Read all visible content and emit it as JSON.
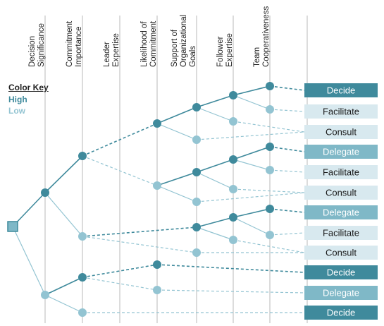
{
  "headers": [
    "Decision\nSignificance",
    "Commitment\nImportance",
    "Leader\nExpertise",
    "Likelihood of\nCommitment",
    "Support of\nOrganizational\nGoals",
    "Follower\nExpertise",
    "Team\nCooperativeness"
  ],
  "color_key": {
    "title": "Color Key",
    "high": "High",
    "low": "Low"
  },
  "colors": {
    "high": "#3f8a9c",
    "low": "#93c4d2",
    "line_high": "#3f8a9c",
    "line_low": "#93c4d2",
    "outcome_dark": "#3f8a9c",
    "outcome_mid": "#7fb8c7",
    "outcome_light": "#d8e9ef",
    "grid": "#b9b9b9"
  },
  "outcomes": [
    {
      "label": "Decide",
      "shade": "dark"
    },
    {
      "label": "Facilitate",
      "shade": "light"
    },
    {
      "label": "Consult",
      "shade": "light"
    },
    {
      "label": "Delegate",
      "shade": "mid"
    },
    {
      "label": "Facilitate",
      "shade": "light"
    },
    {
      "label": "Consult",
      "shade": "light"
    },
    {
      "label": "Delegate",
      "shade": "mid"
    },
    {
      "label": "Facilitate",
      "shade": "light"
    },
    {
      "label": "Consult",
      "shade": "light"
    },
    {
      "label": "Decide",
      "shade": "dark"
    },
    {
      "label": "Delegate",
      "shade": "mid"
    },
    {
      "label": "Decide",
      "shade": "dark"
    }
  ]
}
